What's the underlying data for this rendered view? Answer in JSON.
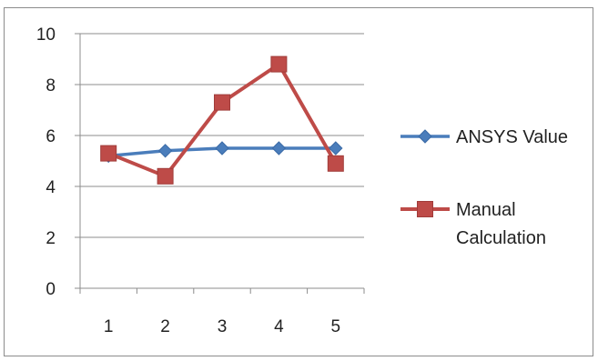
{
  "chart_data": {
    "type": "line",
    "categories": [
      "1",
      "2",
      "3",
      "4",
      "5"
    ],
    "series": [
      {
        "name": "ANSYS Value",
        "values": [
          5.2,
          5.4,
          5.5,
          5.5,
          5.5
        ],
        "color": "#4a7dbb",
        "marker": "diamond"
      },
      {
        "name": "Manual Calculation",
        "values": [
          5.3,
          4.4,
          7.3,
          8.8,
          4.9
        ],
        "color": "#be4b48",
        "marker": "square"
      }
    ],
    "ylim": [
      0,
      10
    ],
    "yticks": [
      "0",
      "2",
      "4",
      "6",
      "8",
      "10"
    ],
    "grid": true,
    "legend_position": "right",
    "title": "",
    "xlabel": "",
    "ylabel": ""
  }
}
